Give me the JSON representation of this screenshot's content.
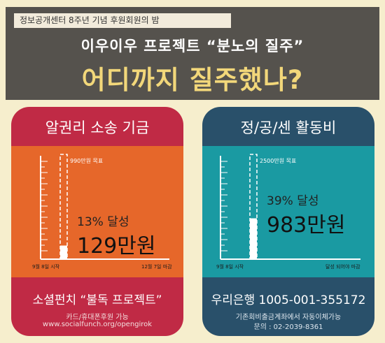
{
  "header": {
    "event_tag": "정보공개센터 8주년 기념 후원회원의 밤",
    "project_title": "이우이우 프로젝트 “분노의 질주”",
    "headline": "어디까지 질주했나?"
  },
  "cards": [
    {
      "title": "알권리 소송 기금",
      "goal_label": "990만원 목표",
      "percent_label": "13% 달성",
      "amount_label": "129만원",
      "progress_fraction": 0.13,
      "axis_start": "9월 8일 시작",
      "axis_end": "12월 7일 마감",
      "footer": "소셜펀치 “불독 프로젝트”",
      "sub1": "카드/휴대폰후원 가능",
      "sub2": "www.socialfunch.org/opengirok",
      "colors": {
        "panel": "#c02a45",
        "chart": "#e6672a"
      }
    },
    {
      "title": "정/공/센 활동비",
      "goal_label": "2500만원 목표",
      "percent_label": "39% 달성",
      "amount_label": "983만원",
      "progress_fraction": 0.39,
      "axis_start": "9월 8일 시작",
      "axis_end": "달성 되어야 마감",
      "footer": "우리은행 1005-001-355172",
      "sub1": "기존회비출금계좌에서 자동이체가능",
      "sub2": "문의 : 02-2039-8361",
      "colors": {
        "panel": "#29506a",
        "chart": "#1a9aa2"
      }
    }
  ]
}
